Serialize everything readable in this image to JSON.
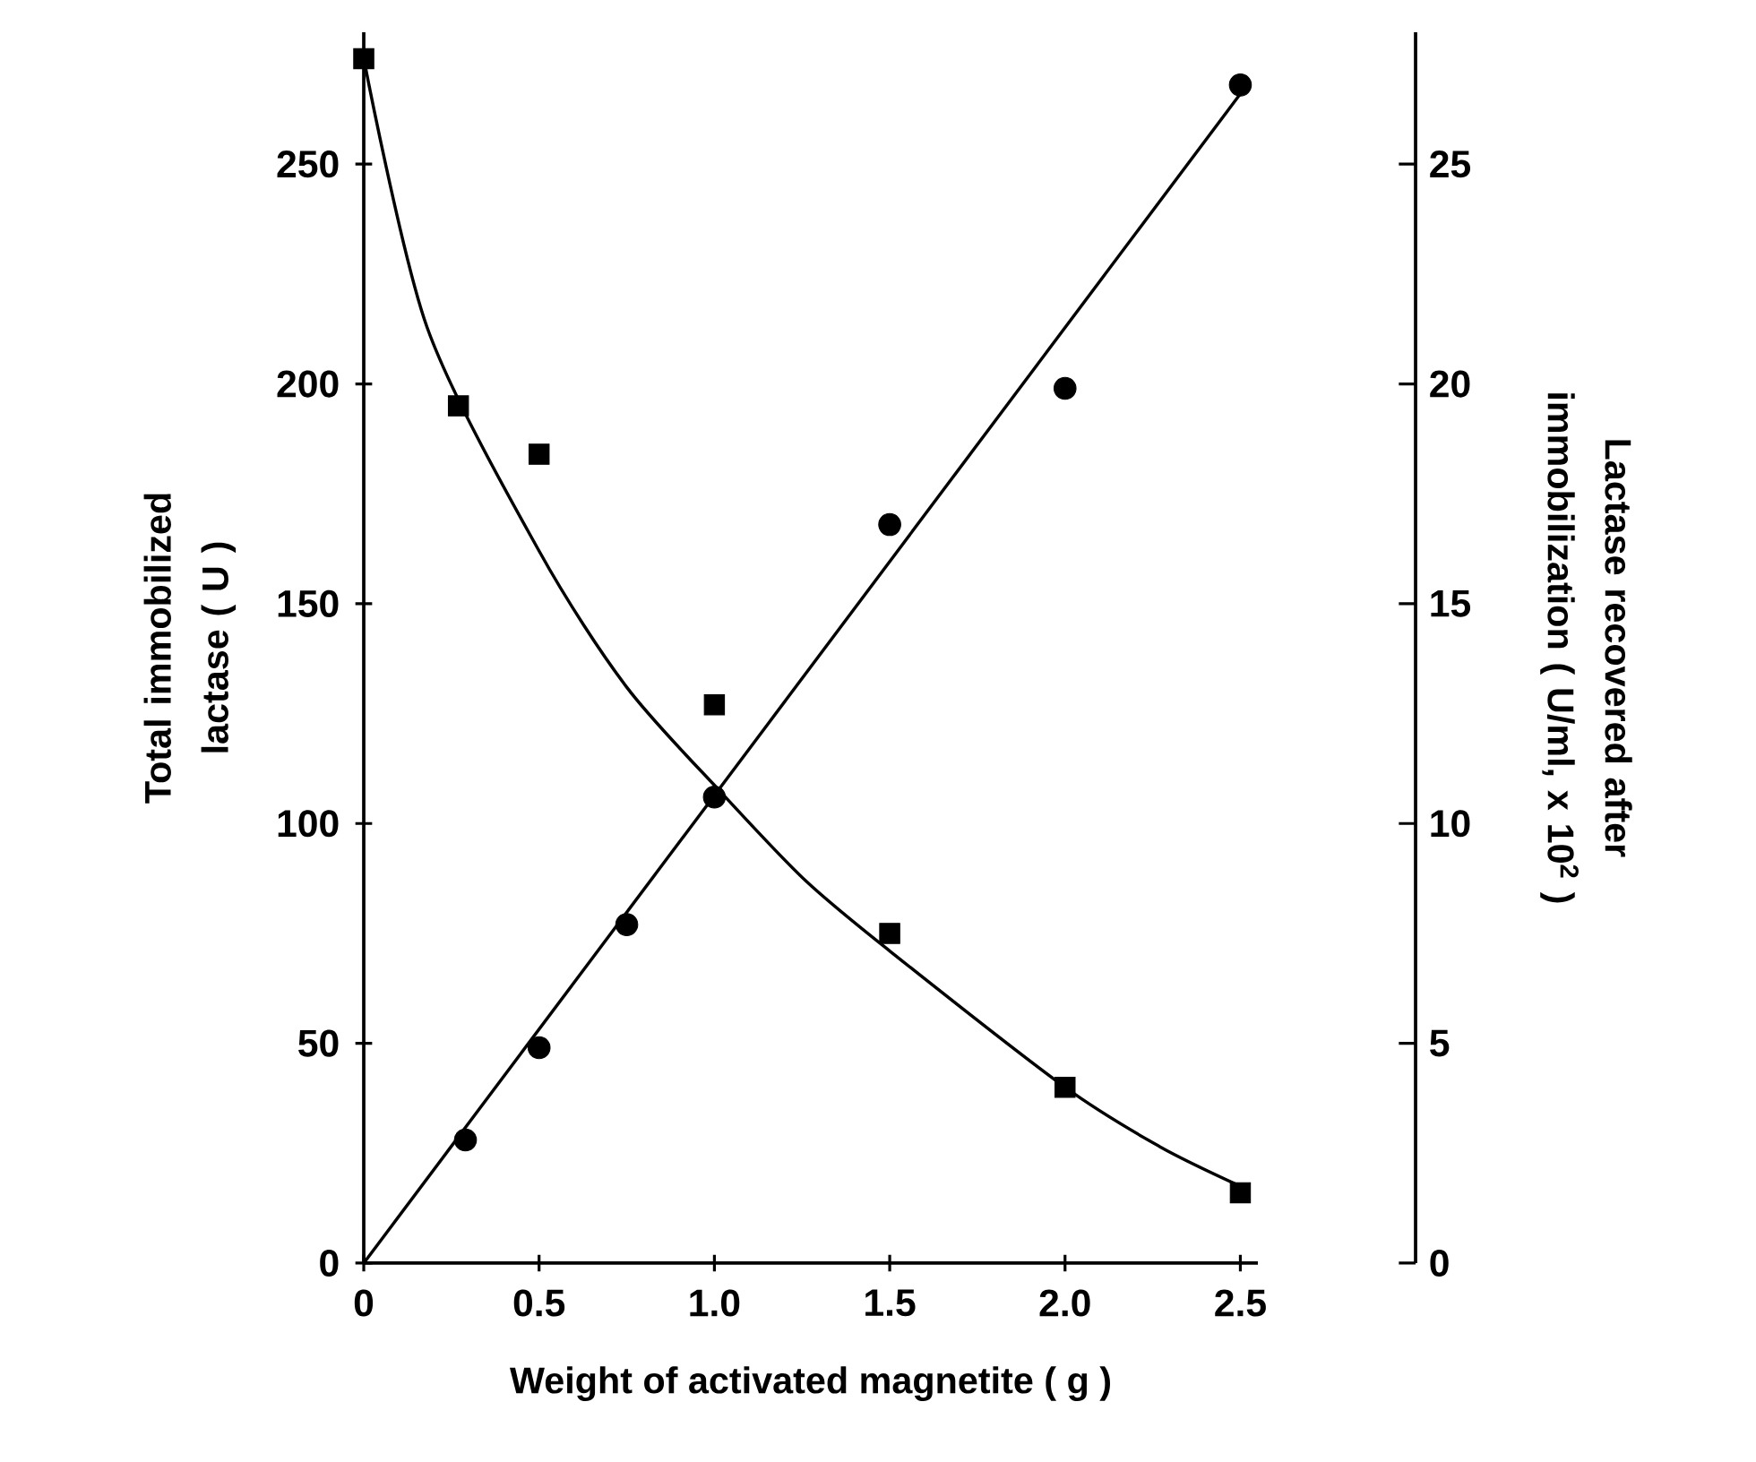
{
  "chart_data": {
    "type": "scatter",
    "xlabel": "Weight of activated magnetite ( g )",
    "ylabel": "Total immobilized lactase ( U )",
    "y2label": "Lactase recovered after immobilization ( U/ml, x 10$^{2}$ )",
    "xlim": [
      0,
      2.55
    ],
    "xticks": [
      0,
      0.5,
      {
        "value": 1,
        "label": "1.0"
      },
      1.5,
      {
        "value": 2,
        "label": "2.0"
      },
      2.5
    ],
    "ylim": [
      0,
      280
    ],
    "yticks": [
      0,
      50,
      100,
      150,
      200,
      250
    ],
    "y2lim": [
      0,
      28
    ],
    "y2ticks": [
      0,
      5,
      10,
      15,
      20,
      25
    ],
    "series": [
      {
        "type": "scatter",
        "marker": "circle",
        "color": "#000000",
        "x": [
          0.29,
          0.5,
          0.75,
          1.0,
          1.5,
          2.0,
          2.5
        ],
        "values": [
          28,
          49,
          77,
          106,
          168,
          199,
          268
        ]
      },
      {
        "type": "line",
        "line_style": "solid",
        "color": "#000000",
        "x": [
          0,
          2.5
        ],
        "values": [
          0,
          266
        ]
      },
      {
        "type": "scatter",
        "marker": "square",
        "color": "#000000",
        "axis": "y2",
        "x": [
          0,
          0.27,
          0.5,
          1.0,
          1.5,
          2.0,
          2.5
        ],
        "values": [
          27.4,
          19.5,
          18.4,
          12.7,
          7.5,
          4.0,
          1.6
        ]
      },
      {
        "type": "line",
        "line_style": "solid",
        "color": "#000000",
        "axis": "y2",
        "x": [
          0,
          0.18,
          0.5,
          0.75,
          1.02,
          1.26,
          1.5,
          2.0,
          2.27,
          2.5
        ],
        "values": [
          27.4,
          21.3,
          16.2,
          13.1,
          10.7,
          8.7,
          7.1,
          4.0,
          2.65,
          1.75
        ]
      }
    ]
  }
}
